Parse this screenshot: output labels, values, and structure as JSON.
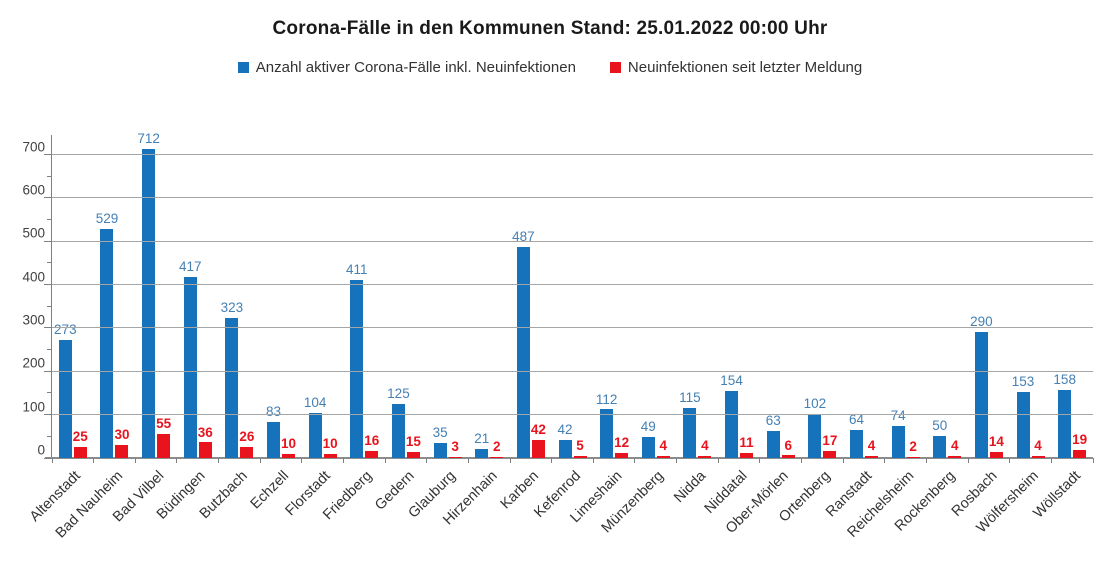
{
  "title": "Corona-Fälle in den Kommunen Stand: 25.01.2022 00:00 Uhr",
  "legend": [
    {
      "label": "Anzahl aktiver Corona-Fälle inkl. Neuinfektionen",
      "color": "#1673bb"
    },
    {
      "label": "Neuinfektionen seit letzter Meldung",
      "color": "#e8131d"
    }
  ],
  "colors": {
    "active_bar": "#1673bb",
    "active_label": "#4480b4",
    "new_bar": "#e8131d",
    "new_label": "#e8131d",
    "gridline": "#a6a6a6",
    "axis": "#808080"
  },
  "chart_data": {
    "type": "bar",
    "title": "Corona-Fälle in den Kommunen Stand: 25.01.2022 00:00 Uhr",
    "categories": [
      "Altenstadt",
      "Bad Nauheim",
      "Bad Vilbel",
      "Büdingen",
      "Butzbach",
      "Echzell",
      "Florstadt",
      "Friedberg",
      "Gedern",
      "Glauburg",
      "Hirzenhain",
      "Karben",
      "Kefenrod",
      "Limeshain",
      "Münzenberg",
      "Nidda",
      "Niddatal",
      "Ober-Mörlen",
      "Ortenberg",
      "Ranstadt",
      "Reichelsheim",
      "Rockenberg",
      "Rosbach",
      "Wölfersheim",
      "Wöllstadt"
    ],
    "series": [
      {
        "name": "Anzahl aktiver Corona-Fälle inkl. Neuinfektionen",
        "color": "#1673bb",
        "label_color": "#4480b4",
        "values": [
          273,
          529,
          712,
          417,
          323,
          83,
          104,
          411,
          125,
          35,
          21,
          487,
          42,
          112,
          49,
          115,
          154,
          63,
          102,
          64,
          74,
          50,
          290,
          153,
          158
        ]
      },
      {
        "name": "Neuinfektionen seit letzter Meldung",
        "color": "#e8131d",
        "label_color": "#e8131d",
        "values": [
          25,
          30,
          55,
          36,
          26,
          10,
          10,
          16,
          15,
          3,
          2,
          42,
          5,
          12,
          4,
          4,
          11,
          6,
          17,
          4,
          2,
          4,
          14,
          4,
          19
        ]
      }
    ],
    "xlabel": "",
    "ylabel": "",
    "y_axis": {
      "min": 0,
      "max": 745,
      "major_tick": 100,
      "minor_tick": 50,
      "tick_labels": [
        0,
        100,
        200,
        300,
        400,
        500,
        600,
        700
      ]
    },
    "grid": true,
    "legend_position": "top",
    "value_labels": true
  }
}
